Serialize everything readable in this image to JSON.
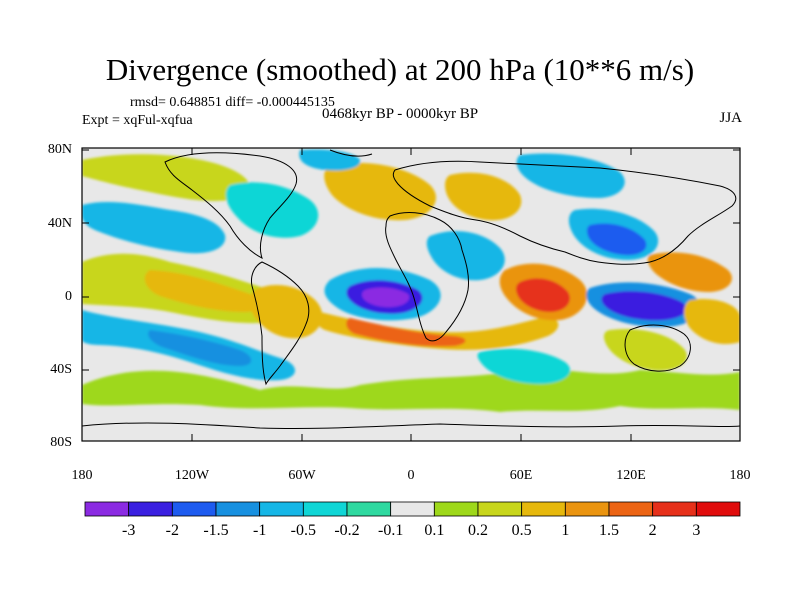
{
  "title": "Divergence (smoothed) at 200 hPa (10**6 m/s)",
  "stats_line": "rmsd= 0.648851 diff= -0.000445135",
  "experiment": "Expt = xqFul-xqfua",
  "period": "0468kyr BP - 0000kyr BP",
  "season": "JJA",
  "lat_labels": [
    "80N",
    "40N",
    "0",
    "40S",
    "80S"
  ],
  "lon_labels": [
    "180",
    "120W",
    "60W",
    "0",
    "60E",
    "120E",
    "180"
  ],
  "colorbar": {
    "labels": [
      "-3",
      "-2",
      "-1.5",
      "-1",
      "-0.5",
      "-0.2",
      "-0.1",
      "0.1",
      "0.2",
      "0.5",
      "1",
      "1.5",
      "2",
      "3"
    ],
    "colors": [
      "#8b2be2",
      "#3a1fe0",
      "#1e5bef",
      "#1790e0",
      "#15b6e6",
      "#10d6d6",
      "#2fd9a0",
      "#e8e8e8",
      "#9ed81a",
      "#c8d61c",
      "#e6b80c",
      "#ea9410",
      "#ec6414",
      "#e6301a",
      "#e00c0c"
    ]
  }
}
